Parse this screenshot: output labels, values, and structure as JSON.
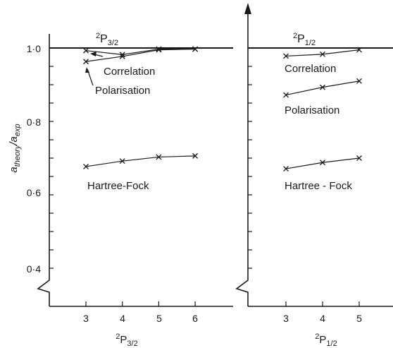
{
  "chart_data": [
    {
      "type": "line",
      "title": "2P3/2",
      "title_main": "2",
      "title_sub": "P",
      "title_index": "3/2",
      "ylabel": "a theory / a exp",
      "ylabel_parts": {
        "a1": "a",
        "s1": "theory",
        "slash": "/",
        "a2": "a",
        "s2": "exp"
      },
      "xlabel_sup": "2",
      "xlabel_main": "P",
      "xlabel_sub": "3/2",
      "xlabel": "2P3/2",
      "ylim": [
        0.35,
        1.02
      ],
      "xlim": [
        2,
        7
      ],
      "y_ticks": [
        "0·4",
        "0·6",
        "0·8",
        "1·0"
      ],
      "y_tick_values": [
        0.4,
        0.6,
        0.8,
        1.0
      ],
      "x_ticks": [
        "3",
        "4",
        "5",
        "6"
      ],
      "reference_line": 1.0,
      "grid": false,
      "series": [
        {
          "name": "Correlation",
          "x": [
            3,
            4,
            5,
            6
          ],
          "values": [
            0.993,
            0.982,
            0.997,
            0.997
          ]
        },
        {
          "name": "Polarisation",
          "x": [
            3,
            4,
            5,
            6
          ],
          "values": [
            0.963,
            0.977,
            0.995,
            0.997
          ]
        },
        {
          "name": "Hartree-Fock",
          "x": [
            3,
            4,
            5,
            6
          ],
          "values": [
            0.677,
            0.692,
            0.703,
            0.706
          ]
        }
      ]
    },
    {
      "type": "line",
      "title": "2P1/2",
      "title_main": "2",
      "title_sub": "P",
      "title_index": "1/2",
      "xlabel_sup": "2",
      "xlabel_main": "P",
      "xlabel_sub": "1/2",
      "xlabel": "2P1/2",
      "ylim": [
        0.35,
        1.02
      ],
      "x_ticks": [
        "3",
        "4",
        "5"
      ],
      "reference_line": 1.0,
      "grid": false,
      "series": [
        {
          "name": "Correlation",
          "x": [
            3,
            4,
            5
          ],
          "values": [
            0.978,
            0.983,
            0.995
          ]
        },
        {
          "name": "Polarisation",
          "x": [
            3,
            4,
            5
          ],
          "values": [
            0.872,
            0.893,
            0.91
          ]
        },
        {
          "name": "Hartree - Fock",
          "x": [
            3,
            4,
            5
          ],
          "values": [
            0.671,
            0.688,
            0.7
          ]
        }
      ]
    }
  ]
}
